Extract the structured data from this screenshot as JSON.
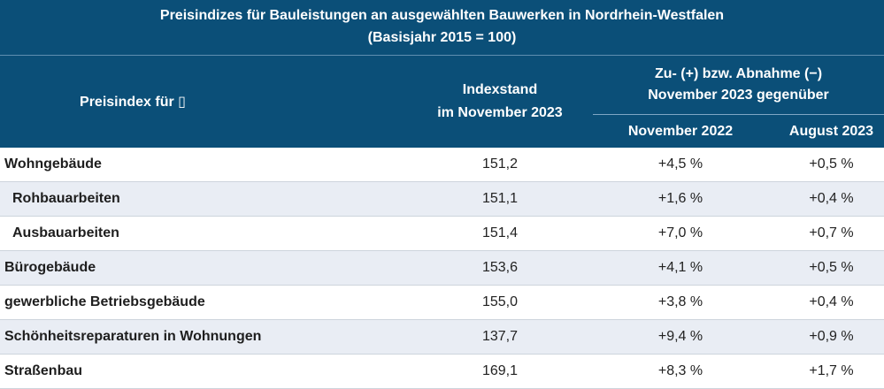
{
  "title": {
    "line1": "Preisindizes für Bauleistungen an ausgewählten Bauwerken in Nordrhein-Westfalen",
    "line2": "(Basisjahr 2015 = 100)"
  },
  "header": {
    "col_label": "Preisindex für ▯",
    "col_index_line1": "Indexstand",
    "col_index_line2": "im November 2023",
    "group_line1": "Zu- (+) bzw. Abnahme (−)",
    "group_line2": "November 2023 gegenüber",
    "sub1": "November 2022",
    "sub2": "August 2023"
  },
  "rows": [
    {
      "label": "Wohngebäude",
      "index": "151,2",
      "nov": "+4,5 %",
      "aug": "+0,5 %"
    },
    {
      "label": "Rohbauarbeiten",
      "index": "151,1",
      "nov": "+1,6 %",
      "aug": "+0,4 %"
    },
    {
      "label": "Ausbauarbeiten",
      "index": "151,4",
      "nov": "+7,0 %",
      "aug": "+0,7 %"
    },
    {
      "label": "Bürogebäude",
      "index": "153,6",
      "nov": "+4,1 %",
      "aug": "+0,5 %"
    },
    {
      "label": "gewerbliche Betriebsgebäude",
      "index": "155,0",
      "nov": "+3,8 %",
      "aug": "+0,4 %"
    },
    {
      "label": "Schönheitsreparaturen in Wohnungen",
      "index": "137,7",
      "nov": "+9,4 %",
      "aug": "+0,9 %"
    },
    {
      "label": "Straßenbau",
      "index": "169,1",
      "nov": "+8,3 %",
      "aug": "+1,7 %"
    }
  ],
  "colors": {
    "header_bg": "#0b4f78",
    "alt_row_bg": "#e9edf4"
  }
}
